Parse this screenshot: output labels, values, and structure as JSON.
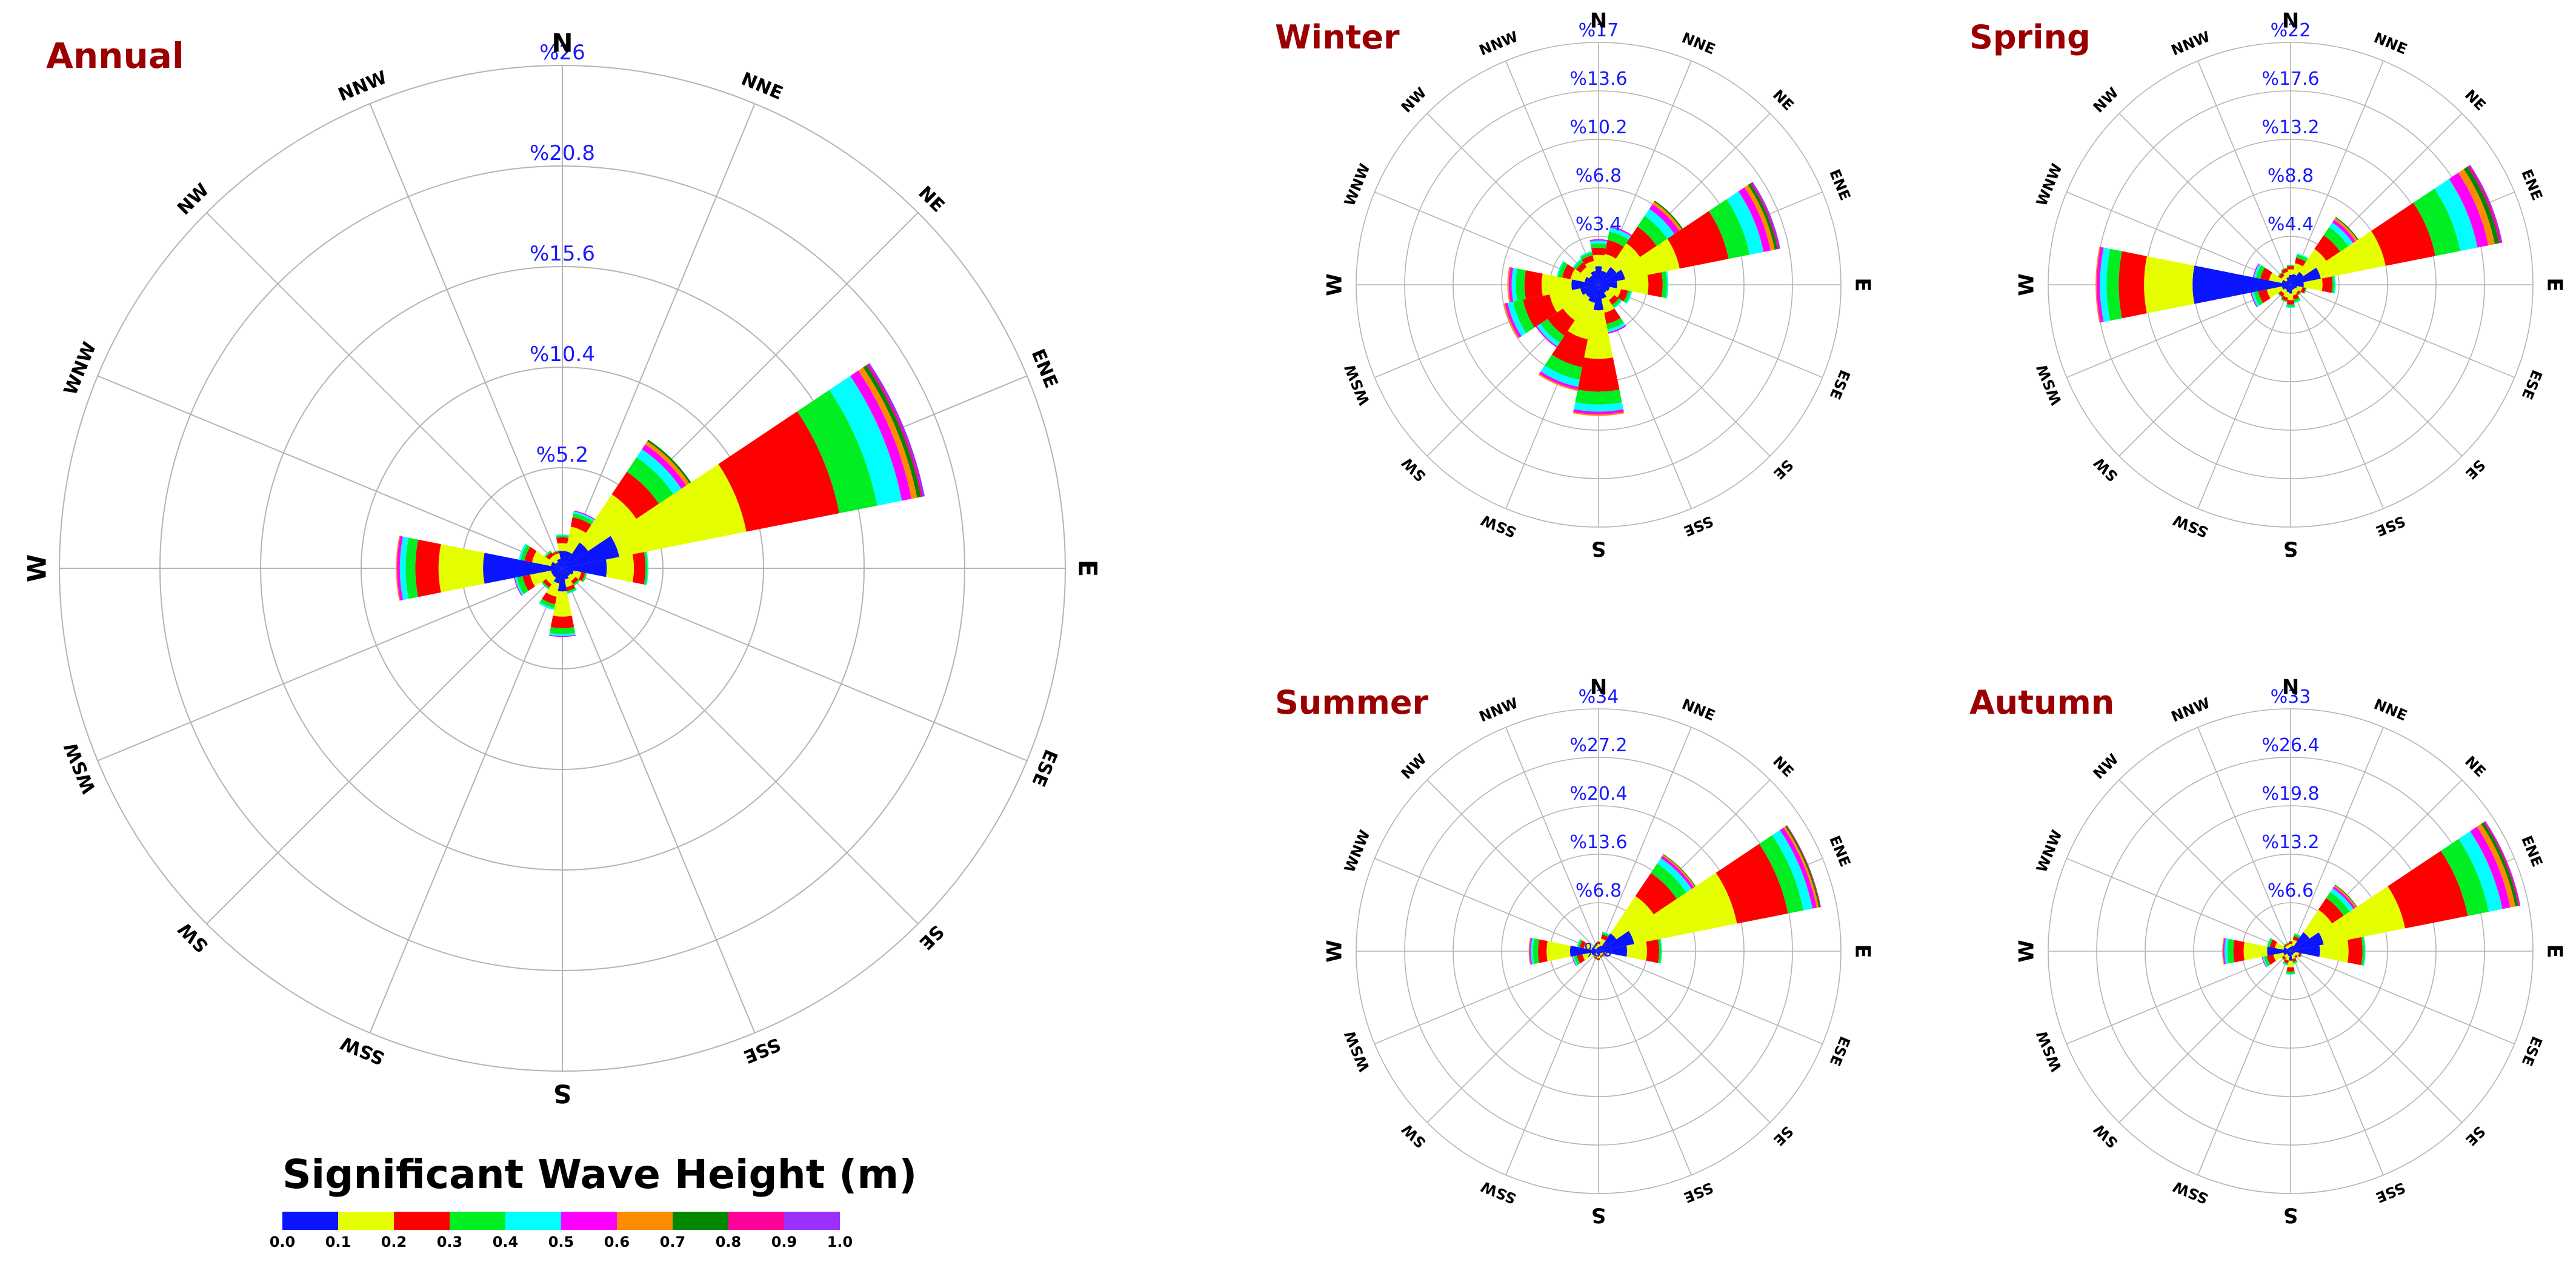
{
  "chart_data": [
    {
      "type": "rose",
      "title": "Annual",
      "directions": [
        "N",
        "NNE",
        "NE",
        "ENE",
        "E",
        "ESE",
        "SE",
        "SSE",
        "S",
        "SSW",
        "SW",
        "WSW",
        "W",
        "WNW",
        "NW",
        "NNW"
      ],
      "ring_labels": [
        "%5.2",
        "%10.4",
        "%15.6",
        "%20.8",
        "%26"
      ],
      "rmax": 26,
      "bins": [
        "0.0-0.1",
        "0.1-0.2",
        "0.2-0.3",
        "0.3-0.4",
        "0.4-0.5",
        "0.5-0.6",
        "0.6-0.7",
        "0.7-0.8",
        "0.8-0.9",
        "0.9-1.0"
      ],
      "frequencies": [
        [
          0.9,
          0.4,
          0.3,
          0.1,
          0.05,
          0,
          0,
          0,
          0,
          0
        ],
        [
          0.9,
          1.3,
          0.5,
          0.2,
          0.1,
          0.05,
          0,
          0,
          0,
          0
        ],
        [
          1.6,
          3.0,
          1.4,
          0.9,
          0.5,
          0.3,
          0.2,
          0.1,
          0,
          0
        ],
        [
          3.0,
          6.7,
          4.9,
          2.0,
          1.3,
          0.5,
          0.3,
          0.2,
          0.1,
          0.1
        ],
        [
          2.3,
          1.4,
          0.6,
          0.1,
          0.05,
          0,
          0,
          0,
          0,
          0
        ],
        [
          0.6,
          0.4,
          0.2,
          0.1,
          0,
          0,
          0,
          0,
          0,
          0
        ],
        [
          0.5,
          0.3,
          0.2,
          0.1,
          0,
          0,
          0,
          0,
          0,
          0
        ],
        [
          0.6,
          0.4,
          0.2,
          0.1,
          0.05,
          0,
          0,
          0,
          0,
          0
        ],
        [
          1.2,
          1.3,
          0.6,
          0.3,
          0.1,
          0.05,
          0,
          0,
          0,
          0
        ],
        [
          0.8,
          0.7,
          0.4,
          0.2,
          0.1,
          0,
          0,
          0,
          0,
          0
        ],
        [
          0.6,
          0.4,
          0.2,
          0.1,
          0,
          0,
          0,
          0,
          0,
          0
        ],
        [
          0.6,
          1.1,
          0.4,
          0.3,
          0.1,
          0.05,
          0,
          0,
          0,
          0
        ],
        [
          4.1,
          2.3,
          1.2,
          0.5,
          0.3,
          0.15,
          0.05,
          0,
          0,
          0
        ],
        [
          0.6,
          1.0,
          0.4,
          0.2,
          0.1,
          0,
          0,
          0,
          0,
          0
        ],
        [
          0.4,
          0.4,
          0.2,
          0.1,
          0,
          0,
          0,
          0,
          0,
          0
        ],
        [
          0.5,
          0.3,
          0.1,
          0.05,
          0,
          0,
          0,
          0,
          0,
          0
        ]
      ]
    },
    {
      "type": "rose",
      "title": "Winter",
      "directions": [
        "N",
        "NNE",
        "NE",
        "ENE",
        "E",
        "ESE",
        "SE",
        "SSE",
        "S",
        "SSW",
        "SW",
        "WSW",
        "W",
        "WNW",
        "NW",
        "NNW"
      ],
      "ring_labels": [
        "%3.4",
        "%6.8",
        "%10.2",
        "%13.6",
        "%17"
      ],
      "rmax": 17,
      "bins": [
        "0.0-0.1",
        "0.1-0.2",
        "0.2-0.3",
        "0.3-0.4",
        "0.4-0.5",
        "0.5-0.6",
        "0.6-0.7",
        "0.7-0.8",
        "0.8-0.9",
        "0.9-1.0"
      ],
      "frequencies": [
        [
          1.3,
          0.8,
          0.5,
          0.3,
          0.2,
          0.1,
          0,
          0,
          0,
          0
        ],
        [
          1.0,
          1.2,
          1.0,
          0.6,
          0.3,
          0.1,
          0,
          0,
          0,
          0
        ],
        [
          1.5,
          2.0,
          1.4,
          0.9,
          0.6,
          0.4,
          0.2,
          0.1,
          0,
          0
        ],
        [
          1.9,
          3.9,
          3.5,
          1.5,
          1.0,
          0.5,
          0.3,
          0.2,
          0.1,
          0.1
        ],
        [
          1.3,
          2.2,
          1.0,
          0.3,
          0.1,
          0,
          0,
          0,
          0,
          0
        ],
        [
          0.8,
          0.8,
          0.5,
          0.2,
          0.1,
          0,
          0,
          0,
          0,
          0
        ],
        [
          0.7,
          0.6,
          0.4,
          0.2,
          0.1,
          0,
          0,
          0,
          0,
          0
        ],
        [
          1.0,
          1.0,
          0.8,
          0.4,
          0.2,
          0.1,
          0,
          0,
          0,
          0
        ],
        [
          1.8,
          3.4,
          2.3,
          0.9,
          0.5,
          0.2,
          0.1,
          0,
          0,
          0
        ],
        [
          1.3,
          2.6,
          2.0,
          0.9,
          0.5,
          0.2,
          0.1,
          0,
          0,
          0
        ],
        [
          1.1,
          1.9,
          1.3,
          0.6,
          0.3,
          0.1,
          0,
          0,
          0,
          0
        ],
        [
          1.3,
          2.2,
          1.9,
          0.7,
          0.4,
          0.2,
          0.1,
          0,
          0,
          0
        ],
        [
          1.9,
          2.1,
          1.2,
          0.6,
          0.3,
          0.2,
          0.1,
          0,
          0,
          0
        ],
        [
          1.0,
          1.0,
          0.6,
          0.3,
          0.1,
          0,
          0,
          0,
          0,
          0
        ],
        [
          0.8,
          0.7,
          0.4,
          0.2,
          0.1,
          0,
          0,
          0,
          0,
          0
        ],
        [
          1.0,
          0.7,
          0.4,
          0.2,
          0.1,
          0,
          0,
          0,
          0,
          0
        ]
      ]
    },
    {
      "type": "rose",
      "title": "Spring",
      "directions": [
        "N",
        "NNE",
        "NE",
        "ENE",
        "E",
        "ESE",
        "SE",
        "SSE",
        "S",
        "SSW",
        "SW",
        "WSW",
        "W",
        "WNW",
        "NW",
        "NNW"
      ],
      "ring_labels": [
        "%4.4",
        "%8.8",
        "%13.2",
        "%17.6",
        "%22"
      ],
      "rmax": 22,
      "bins": [
        "0.0-0.1",
        "0.1-0.2",
        "0.2-0.3",
        "0.3-0.4",
        "0.4-0.5",
        "0.5-0.6",
        "0.6-0.7",
        "0.7-0.8",
        "0.8-0.9",
        "0.9-1.0"
      ],
      "frequencies": [
        [
          0.9,
          0.5,
          0.3,
          0.1,
          0,
          0,
          0,
          0,
          0,
          0
        ],
        [
          1.0,
          1.0,
          0.5,
          0.3,
          0.1,
          0,
          0,
          0,
          0,
          0
        ],
        [
          1.4,
          2.5,
          1.5,
          0.9,
          0.5,
          0.3,
          0.2,
          0.1,
          0,
          0
        ],
        [
          2.8,
          6.0,
          4.6,
          2.3,
          1.6,
          1.0,
          0.6,
          0.4,
          0.2,
          0.1
        ],
        [
          1.2,
          1.7,
          0.9,
          0.2,
          0.1,
          0,
          0,
          0,
          0,
          0
        ],
        [
          0.6,
          0.5,
          0.3,
          0.1,
          0,
          0,
          0,
          0,
          0,
          0
        ],
        [
          0.5,
          0.4,
          0.2,
          0.1,
          0,
          0,
          0,
          0,
          0,
          0
        ],
        [
          0.5,
          0.5,
          0.4,
          0.2,
          0.1,
          0,
          0,
          0,
          0,
          0
        ],
        [
          0.8,
          0.6,
          0.4,
          0.2,
          0.1,
          0,
          0,
          0,
          0,
          0
        ],
        [
          0.7,
          0.5,
          0.3,
          0.1,
          0,
          0,
          0,
          0,
          0,
          0
        ],
        [
          0.6,
          0.4,
          0.3,
          0.1,
          0,
          0,
          0,
          0,
          0,
          0
        ],
        [
          0.8,
          1.4,
          0.8,
          0.4,
          0.2,
          0.1,
          0,
          0,
          0,
          0
        ],
        [
          8.9,
          4.4,
          2.3,
          1.1,
          0.6,
          0.3,
          0.1,
          0,
          0,
          0
        ],
        [
          0.8,
          1.2,
          0.8,
          0.4,
          0.2,
          0.1,
          0,
          0,
          0,
          0
        ],
        [
          0.5,
          0.5,
          0.3,
          0.1,
          0,
          0,
          0,
          0,
          0,
          0
        ],
        [
          0.7,
          0.5,
          0.3,
          0.1,
          0,
          0,
          0,
          0,
          0,
          0
        ]
      ]
    },
    {
      "type": "rose",
      "title": "Summer",
      "directions": [
        "N",
        "NNE",
        "NE",
        "ENE",
        "E",
        "ESE",
        "SE",
        "SSE",
        "S",
        "SSW",
        "SW",
        "WSW",
        "W",
        "WNW",
        "NW",
        "NNW"
      ],
      "ring_labels": [
        "%0",
        "%6.8",
        "%13.6",
        "%20.4",
        "%27.2",
        "%34"
      ],
      "rmax": 34,
      "bins": [
        "0.0-0.1",
        "0.1-0.2",
        "0.2-0.3",
        "0.3-0.4",
        "0.4-0.5",
        "0.5-0.6",
        "0.6-0.7",
        "0.7-0.8",
        "0.8-0.9",
        "0.9-1.0"
      ],
      "frequencies": [
        [
          0.6,
          0.4,
          0.3,
          0.1,
          0,
          0,
          0,
          0,
          0,
          0
        ],
        [
          0.8,
          1.0,
          0.6,
          0.3,
          0.1,
          0,
          0,
          0,
          0,
          0
        ],
        [
          3.0,
          6.3,
          3.9,
          1.6,
          0.9,
          0.4,
          0.2,
          0.1,
          0,
          0
        ],
        [
          5.1,
          14.7,
          7.3,
          2.2,
          1.3,
          0.6,
          0.3,
          0.2,
          0.1,
          0
        ],
        [
          4.0,
          2.8,
          1.7,
          0.3,
          0.1,
          0,
          0,
          0,
          0,
          0
        ],
        [
          0.6,
          0.4,
          0.2,
          0.1,
          0,
          0,
          0,
          0,
          0,
          0
        ],
        [
          0.4,
          0.3,
          0.2,
          0.1,
          0,
          0,
          0,
          0,
          0,
          0
        ],
        [
          0.4,
          0.3,
          0.2,
          0.1,
          0,
          0,
          0,
          0,
          0,
          0
        ],
        [
          0.6,
          0.4,
          0.2,
          0.1,
          0,
          0,
          0,
          0,
          0,
          0
        ],
        [
          0.5,
          0.4,
          0.2,
          0.1,
          0,
          0,
          0,
          0,
          0,
          0
        ],
        [
          0.4,
          0.3,
          0.2,
          0.1,
          0,
          0,
          0,
          0,
          0,
          0
        ],
        [
          1.0,
          1.3,
          0.8,
          0.4,
          0.2,
          0.1,
          0,
          0,
          0,
          0
        ],
        [
          4.0,
          3.3,
          1.2,
          0.7,
          0.3,
          0.2,
          0.1,
          0,
          0,
          0
        ],
        [
          1.0,
          1.1,
          0.6,
          0.3,
          0.1,
          0,
          0,
          0,
          0,
          0
        ],
        [
          0.4,
          0.3,
          0.2,
          0.1,
          0,
          0,
          0,
          0,
          0,
          0
        ],
        [
          0.5,
          0.3,
          0.2,
          0.1,
          0,
          0,
          0,
          0,
          0,
          0
        ]
      ]
    },
    {
      "type": "rose",
      "title": "Autumn",
      "directions": [
        "N",
        "NNE",
        "NE",
        "ENE",
        "E",
        "ESE",
        "SE",
        "SSE",
        "S",
        "SSW",
        "SW",
        "WSW",
        "W",
        "WNW",
        "NW",
        "NNW"
      ],
      "ring_labels": [
        "%6.6",
        "%13.2",
        "%19.8",
        "%26.4",
        "%33"
      ],
      "rmax": 33,
      "bins": [
        "0.0-0.1",
        "0.1-0.2",
        "0.2-0.3",
        "0.3-0.4",
        "0.4-0.5",
        "0.5-0.6",
        "0.6-0.7",
        "0.7-0.8",
        "0.8-0.9",
        "0.9-1.0"
      ],
      "frequencies": [
        [
          0.6,
          0.4,
          0.3,
          0.1,
          0,
          0,
          0,
          0,
          0,
          0
        ],
        [
          0.8,
          0.8,
          0.5,
          0.3,
          0.1,
          0,
          0,
          0,
          0,
          0
        ],
        [
          3.1,
          3.7,
          1.9,
          1.0,
          0.6,
          0.3,
          0.2,
          0.1,
          0,
          0
        ],
        [
          4.6,
          11.3,
          8.7,
          2.9,
          1.9,
          1.1,
          0.7,
          0.4,
          0.2,
          0.1
        ],
        [
          4.0,
          3.9,
          1.9,
          0.3,
          0.1,
          0,
          0,
          0,
          0,
          0
        ],
        [
          0.6,
          0.6,
          0.3,
          0.1,
          0,
          0,
          0,
          0,
          0,
          0
        ],
        [
          0.5,
          0.4,
          0.2,
          0.1,
          0,
          0,
          0,
          0,
          0,
          0
        ],
        [
          0.6,
          0.5,
          0.4,
          0.2,
          0.1,
          0,
          0,
          0,
          0,
          0
        ],
        [
          1.3,
          0.9,
          0.6,
          0.3,
          0.1,
          0,
          0,
          0,
          0,
          0
        ],
        [
          0.7,
          0.6,
          0.4,
          0.2,
          0.1,
          0,
          0,
          0,
          0,
          0
        ],
        [
          0.6,
          0.5,
          0.3,
          0.1,
          0,
          0,
          0,
          0,
          0,
          0
        ],
        [
          1.0,
          1.4,
          0.9,
          0.4,
          0.2,
          0.1,
          0,
          0,
          0,
          0
        ],
        [
          3.2,
          3.2,
          1.4,
          0.8,
          0.4,
          0.2,
          0.1,
          0,
          0,
          0
        ],
        [
          1.0,
          1.2,
          0.7,
          0.3,
          0.1,
          0,
          0,
          0,
          0,
          0
        ],
        [
          0.5,
          0.4,
          0.2,
          0.1,
          0,
          0,
          0,
          0,
          0,
          0
        ],
        [
          0.5,
          0.4,
          0.2,
          0.1,
          0,
          0,
          0,
          0,
          0,
          0
        ]
      ]
    }
  ],
  "legend": {
    "title": "Significant Wave Height (m)",
    "ticks": [
      "0.0",
      "0.1",
      "0.2",
      "0.3",
      "0.4",
      "0.5",
      "0.6",
      "0.7",
      "0.8",
      "0.9",
      "1.0"
    ],
    "colors": [
      "#0a14ff",
      "#e6ff00",
      "#ff0000",
      "#00ee22",
      "#00ffff",
      "#ff00ff",
      "#ff8c00",
      "#008800",
      "#ff0099",
      "#9b30ff"
    ]
  }
}
